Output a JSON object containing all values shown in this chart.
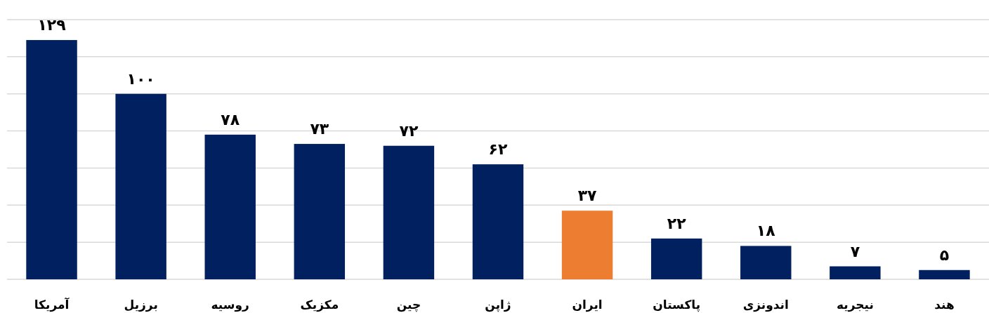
{
  "chart_data": {
    "type": "bar",
    "categories": [
      "آمریکا",
      "برزیل",
      "روسیه",
      "مکزیک",
      "چین",
      "ژاپن",
      "ایران",
      "پاکستان",
      "اندونزی",
      "نیجریه",
      "هند"
    ],
    "values": [
      129,
      100,
      78,
      73,
      72,
      62,
      37,
      22,
      18,
      7,
      5
    ],
    "value_labels": [
      "۱۲۹",
      "۱۰۰",
      "۷۸",
      "۷۳",
      "۷۲",
      "۶۲",
      "۳۷",
      "۲۲",
      "۱۸",
      "۷",
      "۵"
    ],
    "colors": [
      "#012060",
      "#012060",
      "#012060",
      "#012060",
      "#012060",
      "#012060",
      "#ed7d31",
      "#012060",
      "#012060",
      "#012060",
      "#012060"
    ],
    "ylim": [
      0,
      140
    ],
    "yticks": [
      {
        "value": 0,
        "label": null
      },
      {
        "value": 20,
        "label": null
      },
      {
        "value": 40,
        "label": null
      },
      {
        "value": 60,
        "label": null
      },
      {
        "value": 80,
        "label": null
      },
      {
        "value": 100,
        "label": null
      },
      {
        "value": 120,
        "label": null
      },
      {
        "value": 140,
        "label": null
      }
    ],
    "grid": "y",
    "tick_labels": "x"
  }
}
